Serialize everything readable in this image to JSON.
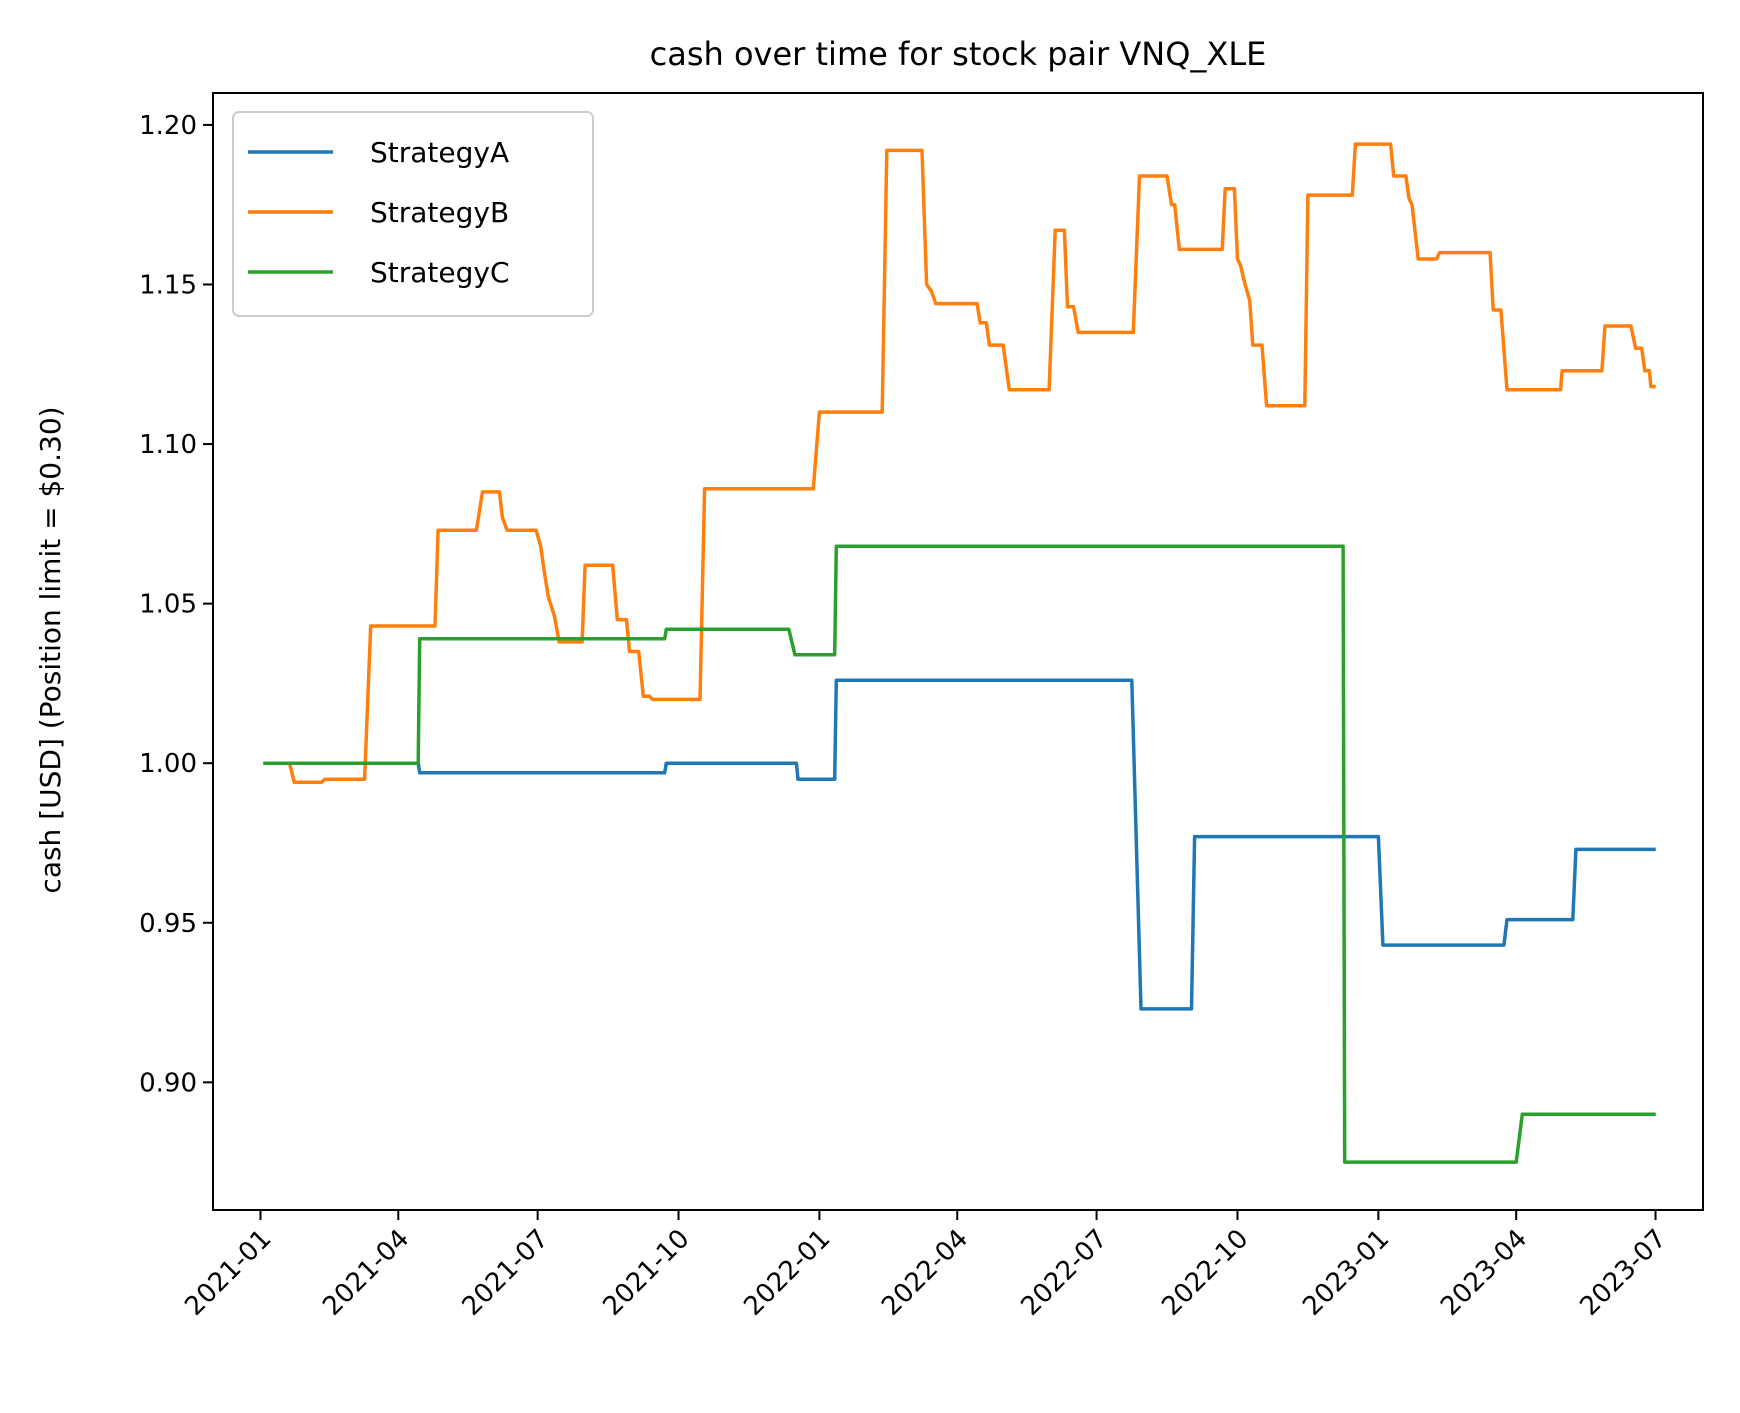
{
  "chart_data": {
    "type": "line",
    "title": "cash over time for stock pair VNQ_XLE",
    "xlabel": "",
    "ylabel": "cash [USD] (Position limit = $0.30)",
    "xlim": [
      "2020-12-01",
      "2023-08-01"
    ],
    "ylim": [
      0.86,
      1.21
    ],
    "x_ticks": [
      "2021-01",
      "2021-04",
      "2021-07",
      "2021-10",
      "2022-01",
      "2022-04",
      "2022-07",
      "2022-10",
      "2023-01",
      "2023-04",
      "2023-07"
    ],
    "y_ticks": [
      0.9,
      0.95,
      1.0,
      1.05,
      1.1,
      1.15,
      1.2
    ],
    "y_tick_labels": [
      "0.90",
      "0.95",
      "1.00",
      "1.05",
      "1.10",
      "1.15",
      "1.20"
    ],
    "grid": false,
    "legend": {
      "placement": "top-left"
    },
    "series": [
      {
        "name": "StrategyA",
        "color": "#1f77b4",
        "points": [
          [
            "2021-01-04",
            1.0
          ],
          [
            "2021-04-14",
            1.0
          ],
          [
            "2021-04-15",
            0.997
          ],
          [
            "2021-09-22",
            0.997
          ],
          [
            "2021-09-23",
            1.0
          ],
          [
            "2021-12-17",
            1.0
          ],
          [
            "2021-12-18",
            0.995
          ],
          [
            "2022-01-11",
            0.995
          ],
          [
            "2022-01-12",
            1.026
          ],
          [
            "2022-07-24",
            1.026
          ],
          [
            "2022-07-30",
            0.923
          ],
          [
            "2022-09-01",
            0.923
          ],
          [
            "2022-09-03",
            0.977
          ],
          [
            "2023-01-01",
            0.977
          ],
          [
            "2023-01-04",
            0.943
          ],
          [
            "2023-03-24",
            0.943
          ],
          [
            "2023-03-26",
            0.951
          ],
          [
            "2023-05-08",
            0.951
          ],
          [
            "2023-05-10",
            0.973
          ],
          [
            "2023-06-30",
            0.973
          ]
        ]
      },
      {
        "name": "StrategyB",
        "color": "#ff7f0e",
        "points": [
          [
            "2021-01-04",
            1.0
          ],
          [
            "2021-01-20",
            1.0
          ],
          [
            "2021-01-23",
            0.994
          ],
          [
            "2021-02-10",
            0.994
          ],
          [
            "2021-02-12",
            0.995
          ],
          [
            "2021-03-10",
            0.995
          ],
          [
            "2021-03-14",
            1.043
          ],
          [
            "2021-04-25",
            1.043
          ],
          [
            "2021-04-27",
            1.073
          ],
          [
            "2021-05-22",
            1.073
          ],
          [
            "2021-05-26",
            1.085
          ],
          [
            "2021-06-06",
            1.085
          ],
          [
            "2021-06-08",
            1.077
          ],
          [
            "2021-06-11",
            1.073
          ],
          [
            "2021-06-30",
            1.073
          ],
          [
            "2021-07-03",
            1.068
          ],
          [
            "2021-07-05",
            1.061
          ],
          [
            "2021-07-08",
            1.052
          ],
          [
            "2021-07-12",
            1.046
          ],
          [
            "2021-07-15",
            1.038
          ],
          [
            "2021-07-30",
            1.038
          ],
          [
            "2021-08-01",
            1.062
          ],
          [
            "2021-08-19",
            1.062
          ],
          [
            "2021-08-22",
            1.045
          ],
          [
            "2021-08-28",
            1.045
          ],
          [
            "2021-08-30",
            1.035
          ],
          [
            "2021-09-05",
            1.035
          ],
          [
            "2021-09-08",
            1.021
          ],
          [
            "2021-09-12",
            1.021
          ],
          [
            "2021-09-14",
            1.02
          ],
          [
            "2021-10-15",
            1.02
          ],
          [
            "2021-10-18",
            1.086
          ],
          [
            "2021-12-28",
            1.086
          ],
          [
            "2022-01-01",
            1.11
          ],
          [
            "2022-02-11",
            1.11
          ],
          [
            "2022-02-14",
            1.192
          ],
          [
            "2022-03-09",
            1.192
          ],
          [
            "2022-03-12",
            1.15
          ],
          [
            "2022-03-15",
            1.148
          ],
          [
            "2022-03-18",
            1.144
          ],
          [
            "2022-04-14",
            1.144
          ],
          [
            "2022-04-16",
            1.138
          ],
          [
            "2022-04-20",
            1.138
          ],
          [
            "2022-04-22",
            1.131
          ],
          [
            "2022-05-01",
            1.131
          ],
          [
            "2022-05-05",
            1.117
          ],
          [
            "2022-05-31",
            1.117
          ],
          [
            "2022-06-04",
            1.167
          ],
          [
            "2022-06-10",
            1.167
          ],
          [
            "2022-06-12",
            1.143
          ],
          [
            "2022-06-16",
            1.143
          ],
          [
            "2022-06-19",
            1.135
          ],
          [
            "2022-07-25",
            1.135
          ],
          [
            "2022-07-29",
            1.184
          ],
          [
            "2022-08-16",
            1.184
          ],
          [
            "2022-08-19",
            1.175
          ],
          [
            "2022-08-21",
            1.175
          ],
          [
            "2022-08-24",
            1.161
          ],
          [
            "2022-09-21",
            1.161
          ],
          [
            "2022-09-23",
            1.18
          ],
          [
            "2022-09-29",
            1.18
          ],
          [
            "2022-10-01",
            1.158
          ],
          [
            "2022-10-03",
            1.156
          ],
          [
            "2022-10-06",
            1.15
          ],
          [
            "2022-10-09",
            1.145
          ],
          [
            "2022-10-11",
            1.131
          ],
          [
            "2022-10-17",
            1.131
          ],
          [
            "2022-10-20",
            1.112
          ],
          [
            "2022-11-14",
            1.112
          ],
          [
            "2022-11-16",
            1.178
          ],
          [
            "2022-12-15",
            1.178
          ],
          [
            "2022-12-17",
            1.194
          ],
          [
            "2023-01-09",
            1.194
          ],
          [
            "2023-01-11",
            1.184
          ],
          [
            "2023-01-19",
            1.184
          ],
          [
            "2023-01-21",
            1.177
          ],
          [
            "2023-01-23",
            1.175
          ],
          [
            "2023-01-27",
            1.158
          ],
          [
            "2023-02-08",
            1.158
          ],
          [
            "2023-02-10",
            1.16
          ],
          [
            "2023-03-15",
            1.16
          ],
          [
            "2023-03-17",
            1.142
          ],
          [
            "2023-03-22",
            1.142
          ],
          [
            "2023-03-26",
            1.117
          ],
          [
            "2023-04-30",
            1.117
          ],
          [
            "2023-05-01",
            1.123
          ],
          [
            "2023-05-27",
            1.123
          ],
          [
            "2023-05-29",
            1.137
          ],
          [
            "2023-06-15",
            1.137
          ],
          [
            "2023-06-18",
            1.13
          ],
          [
            "2023-06-22",
            1.13
          ],
          [
            "2023-06-24",
            1.123
          ],
          [
            "2023-06-27",
            1.123
          ],
          [
            "2023-06-28",
            1.118
          ],
          [
            "2023-06-30",
            1.118
          ]
        ]
      },
      {
        "name": "StrategyC",
        "color": "#2ca02c",
        "points": [
          [
            "2021-01-04",
            1.0
          ],
          [
            "2021-04-14",
            1.0
          ],
          [
            "2021-04-15",
            1.039
          ],
          [
            "2021-09-22",
            1.039
          ],
          [
            "2021-09-23",
            1.042
          ],
          [
            "2021-12-12",
            1.042
          ],
          [
            "2021-12-16",
            1.034
          ],
          [
            "2022-01-11",
            1.034
          ],
          [
            "2022-01-12",
            1.068
          ],
          [
            "2022-12-09",
            1.068
          ],
          [
            "2022-12-10",
            0.875
          ],
          [
            "2023-04-01",
            0.875
          ],
          [
            "2023-04-05",
            0.89
          ],
          [
            "2023-06-30",
            0.89
          ]
        ]
      }
    ]
  }
}
